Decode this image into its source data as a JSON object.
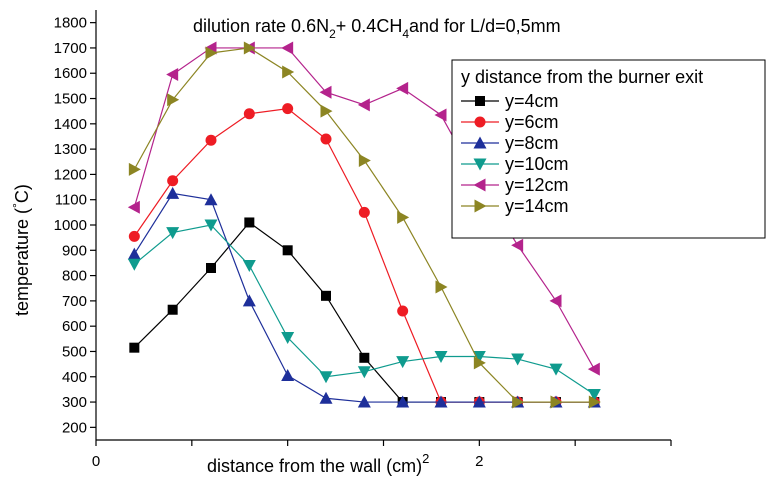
{
  "chart_data": {
    "type": "line",
    "title": {
      "prefix": "dilution rate 0.6N",
      "sub1": "2",
      "mid": "+ 0.4CH",
      "sub2": "4",
      "suffix": "and for L/d=0,5mm"
    },
    "xlabel": {
      "main": "distance from the wall (cm)",
      "sup": "2"
    },
    "ylabel": {
      "main": "temperature (",
      "deg": "°",
      "tail": "C)"
    },
    "xlim": [
      0,
      3
    ],
    "ylim": [
      150,
      1850
    ],
    "x_ticks": [
      {
        "value": 0,
        "label": "0"
      },
      {
        "value": 2,
        "label": "2"
      }
    ],
    "x_minor_ticks": [
      0,
      0.5,
      1,
      1.5,
      2,
      2.5,
      3
    ],
    "y_ticks": [
      200,
      300,
      400,
      500,
      600,
      700,
      800,
      900,
      1000,
      1100,
      1200,
      1300,
      1400,
      1500,
      1600,
      1700,
      1800
    ],
    "grid": false,
    "legend": {
      "title": "y distance from the burner exit",
      "placement": "top-right"
    },
    "x": [
      0.2,
      0.4,
      0.6,
      0.8,
      1.0,
      1.2,
      1.4,
      1.6,
      1.8,
      2.0,
      2.2,
      2.4,
      2.6
    ],
    "series": [
      {
        "name": "y=4cm",
        "color": "#000000",
        "marker": "square",
        "values": [
          515,
          665,
          830,
          1010,
          900,
          720,
          475,
          300,
          300,
          300,
          300,
          300,
          300
        ]
      },
      {
        "name": "y=6cm",
        "color": "#ee1c24",
        "marker": "circle",
        "values": [
          955,
          1175,
          1335,
          1440,
          1460,
          1340,
          1050,
          660,
          300,
          300,
          300,
          300,
          300
        ]
      },
      {
        "name": "y=8cm",
        "color": "#1e2f9a",
        "marker": "triangle-up",
        "values": [
          885,
          1125,
          1100,
          700,
          405,
          315,
          300,
          300,
          300,
          300,
          300,
          300,
          300
        ]
      },
      {
        "name": "y=10cm",
        "color": "#0f9b8e",
        "marker": "triangle-down",
        "values": [
          845,
          970,
          1000,
          840,
          555,
          400,
          420,
          460,
          480,
          480,
          470,
          430,
          330
        ]
      },
      {
        "name": "y=12cm",
        "color": "#b4238c",
        "marker": "triangle-left",
        "values": [
          1070,
          1595,
          1700,
          1700,
          1700,
          1525,
          1475,
          1540,
          1435,
          1160,
          920,
          700,
          430
        ]
      },
      {
        "name": "y=14cm",
        "color": "#8c8523",
        "marker": "triangle-right",
        "values": [
          1220,
          1495,
          1680,
          1700,
          1605,
          1450,
          1255,
          1030,
          755,
          455,
          300,
          300,
          300
        ]
      }
    ]
  }
}
